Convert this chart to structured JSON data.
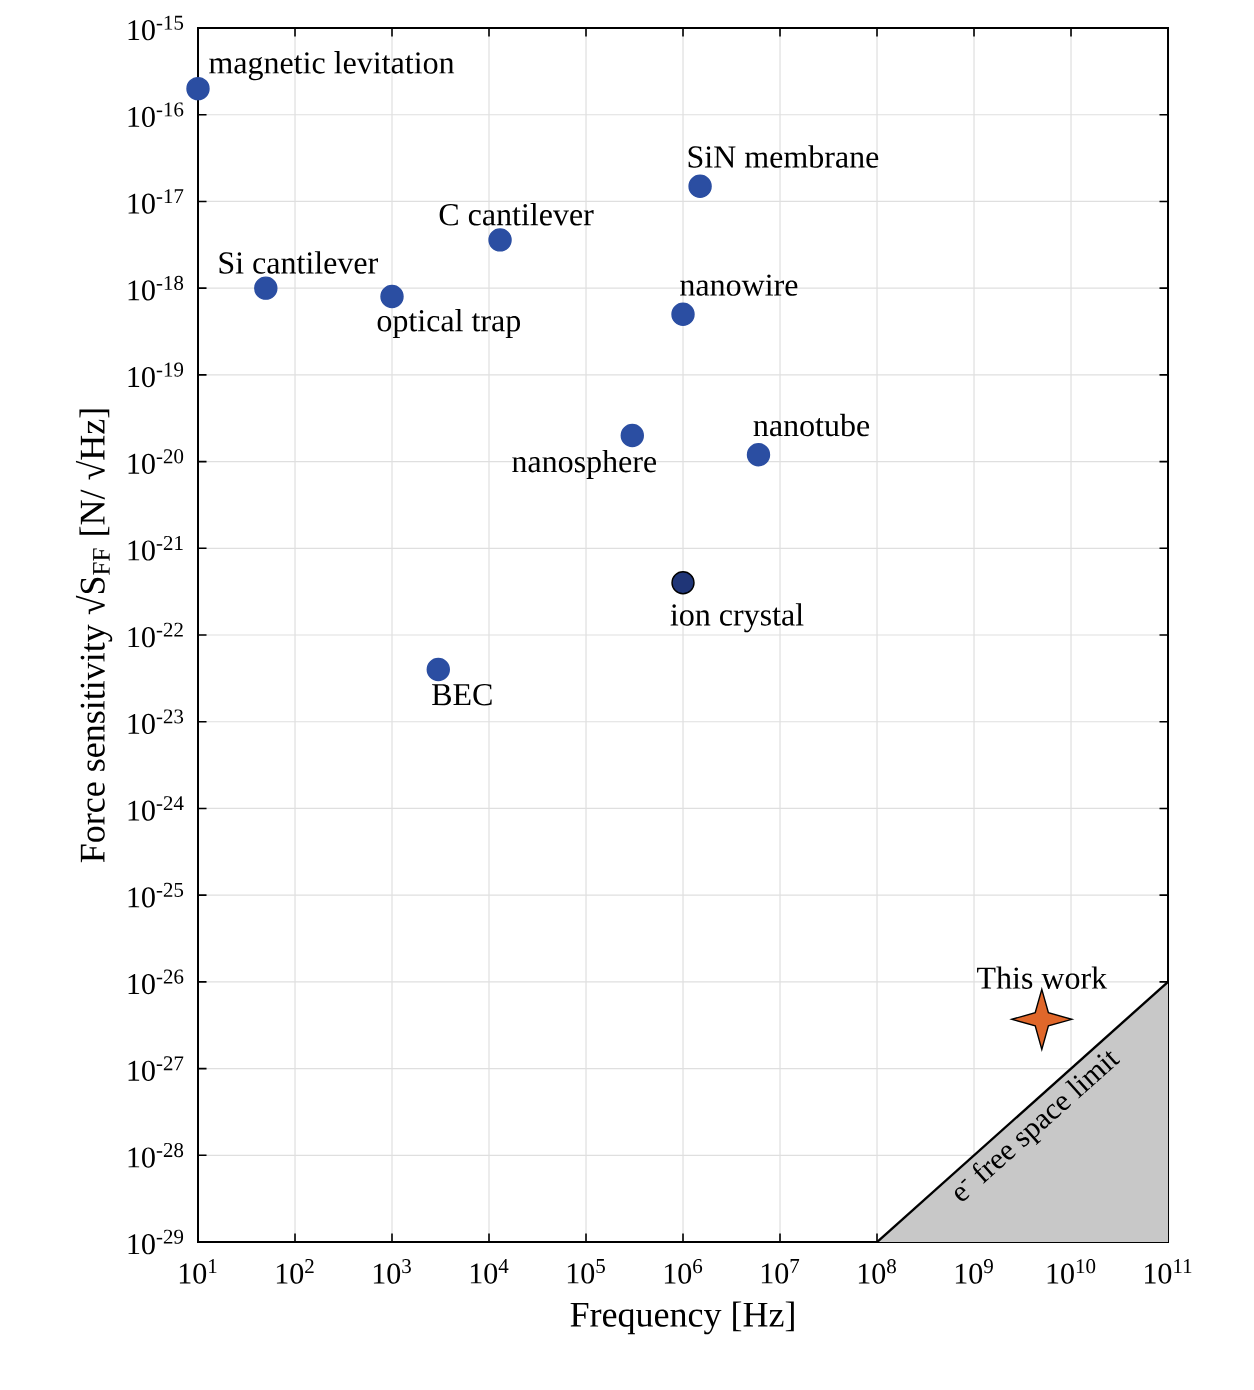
{
  "chart_data": {
    "type": "scatter",
    "xlabel": "Frequency [Hz]",
    "ylabel": "Force sensitivity  √S$_{FF}$ [N/ √Hz]",
    "log": "xy",
    "grid": true,
    "xlim": [
      10.0,
      100000000000.0
    ],
    "ylim": [
      1e-29,
      1e-15
    ],
    "xticks": [
      {
        "value": 10.0,
        "label": "10$^{1}$"
      },
      {
        "value": 100.0,
        "label": "10$^{2}$"
      },
      {
        "value": 1000.0,
        "label": "10$^{3}$"
      },
      {
        "value": 10000.0,
        "label": "10$^{4}$"
      },
      {
        "value": 100000.0,
        "label": "10$^{5}$"
      },
      {
        "value": 1000000.0,
        "label": "10$^{6}$"
      },
      {
        "value": 10000000.0,
        "label": "10$^{7}$"
      },
      {
        "value": 100000000.0,
        "label": "10$^{8}$"
      },
      {
        "value": 1000000000.0,
        "label": "10$^{9}$"
      },
      {
        "value": 10000000000.0,
        "label": "10$^{10}$"
      },
      {
        "value": 100000000000.0,
        "label": "10$^{11}$"
      }
    ],
    "yticks": [
      {
        "value": 1e-29,
        "label": "10$^{-29}$"
      },
      {
        "value": 1e-28,
        "label": "10$^{-28}$"
      },
      {
        "value": 1e-27,
        "label": "10$^{-27}$"
      },
      {
        "value": 1e-26,
        "label": "10$^{-26}$"
      },
      {
        "value": 1e-25,
        "label": "10$^{-25}$"
      },
      {
        "value": 1e-24,
        "label": "10$^{-24}$"
      },
      {
        "value": 1e-23,
        "label": "10$^{-23}$"
      },
      {
        "value": 1e-22,
        "label": "10$^{-22}$"
      },
      {
        "value": 1e-21,
        "label": "10$^{-21}$"
      },
      {
        "value": 1e-20,
        "label": "10$^{-20}$"
      },
      {
        "value": 1e-19,
        "label": "10$^{-19}$"
      },
      {
        "value": 1e-18,
        "label": "10$^{-18}$"
      },
      {
        "value": 1e-17,
        "label": "10$^{-17}$"
      },
      {
        "value": 1e-16,
        "label": "10$^{-16}$"
      },
      {
        "value": 1e-15,
        "label": "10$^{-15}$"
      }
    ],
    "series": [
      {
        "type": "area",
        "color": "#c8c8c8",
        "x": [
          100000000.0,
          100000000000.0
        ],
        "values": [
          1e-29,
          1e-26
        ]
      },
      {
        "type": "scatter",
        "marker": "circle",
        "x": [
          10.0,
          50,
          1000.0,
          13000.0,
          1500000.0,
          1000000.0,
          300000.0,
          6000000.0,
          1000000.0,
          3000.0
        ],
        "values": [
          2e-16,
          1e-18,
          8e-19,
          3.6e-18,
          1.5e-17,
          5e-19,
          2e-20,
          1.2e-20,
          4e-22,
          4e-23
        ],
        "colors": [
          "#2b4ea2",
          "#2b4ea2",
          "#2b4ea2",
          "#2b4ea2",
          "#2b4ea2",
          "#2b4ea2",
          "#2b4ea2",
          "#2b4ea2",
          "#1f3577",
          "#2b4ea2"
        ]
      },
      {
        "type": "scatter",
        "marker": "star",
        "color": "#e0672a",
        "x": [
          5000000000.0
        ],
        "values": [
          3.7e-27
        ]
      }
    ],
    "annotations": [
      {
        "text": "magnetic levitation",
        "x": 10.0,
        "y": 2e-16
      },
      {
        "text": "Si cantilever",
        "x": 50,
        "y": 1e-18
      },
      {
        "text": "optical trap",
        "x": 1000.0,
        "y": 8e-19
      },
      {
        "text": "C cantilever",
        "x": 13000.0,
        "y": 3.6e-18
      },
      {
        "text": "SiN membrane",
        "x": 1500000.0,
        "y": 1.5e-17
      },
      {
        "text": "nanowire",
        "x": 1000000.0,
        "y": 5e-19
      },
      {
        "text": "nanosphere",
        "x": 300000.0,
        "y": 2e-20
      },
      {
        "text": "nanotube",
        "x": 6000000.0,
        "y": 1.2e-20
      },
      {
        "text": "ion crystal",
        "x": 1000000.0,
        "y": 4e-22
      },
      {
        "text": "BEC",
        "x": 3000.0,
        "y": 4e-23
      },
      {
        "text": "This work",
        "x": 5000000000.0,
        "y": 3.7e-27
      },
      "e$^{-}$ free space limit"
    ]
  }
}
